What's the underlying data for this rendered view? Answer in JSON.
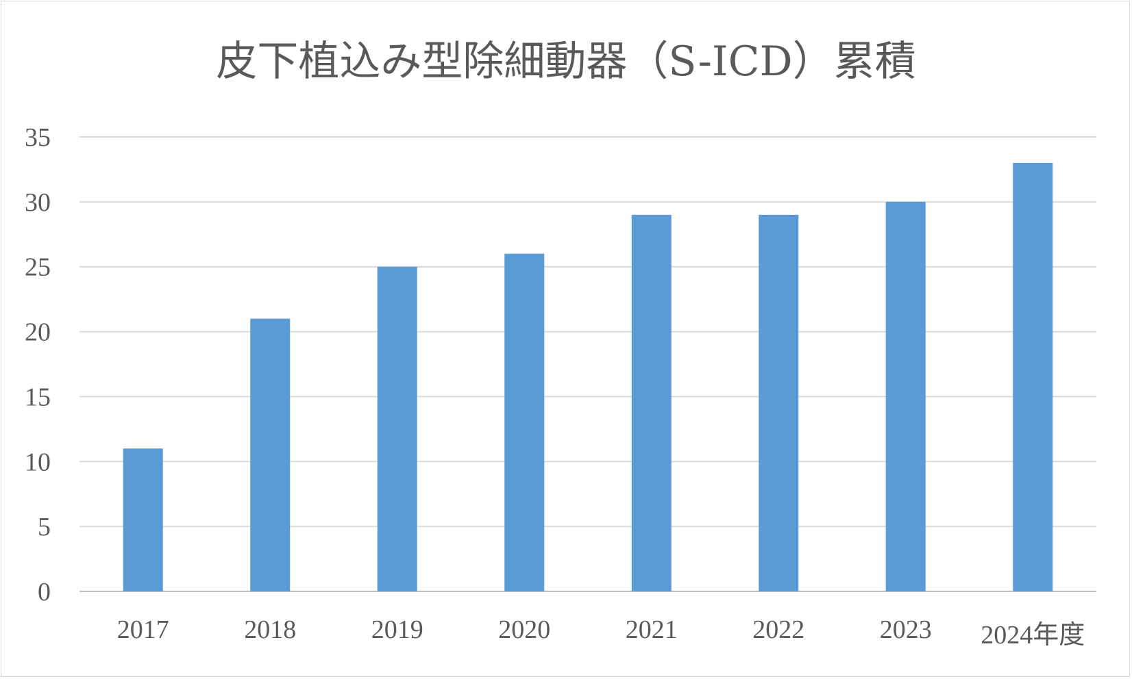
{
  "chart_data": {
    "type": "bar",
    "title": "皮下植込み型除細動器（S-ICD）累積",
    "categories": [
      "2017",
      "2018",
      "2019",
      "2020",
      "2021",
      "2022",
      "2023",
      "2024年度"
    ],
    "series": [
      {
        "values": [
          11,
          21,
          25,
          26,
          29,
          29,
          30,
          33
        ],
        "color": "#5b9bd5"
      }
    ],
    "ylim": [
      0,
      35
    ],
    "yticks": [
      0,
      5,
      10,
      15,
      20,
      25,
      30,
      35
    ],
    "grid": true,
    "legend": "none"
  }
}
